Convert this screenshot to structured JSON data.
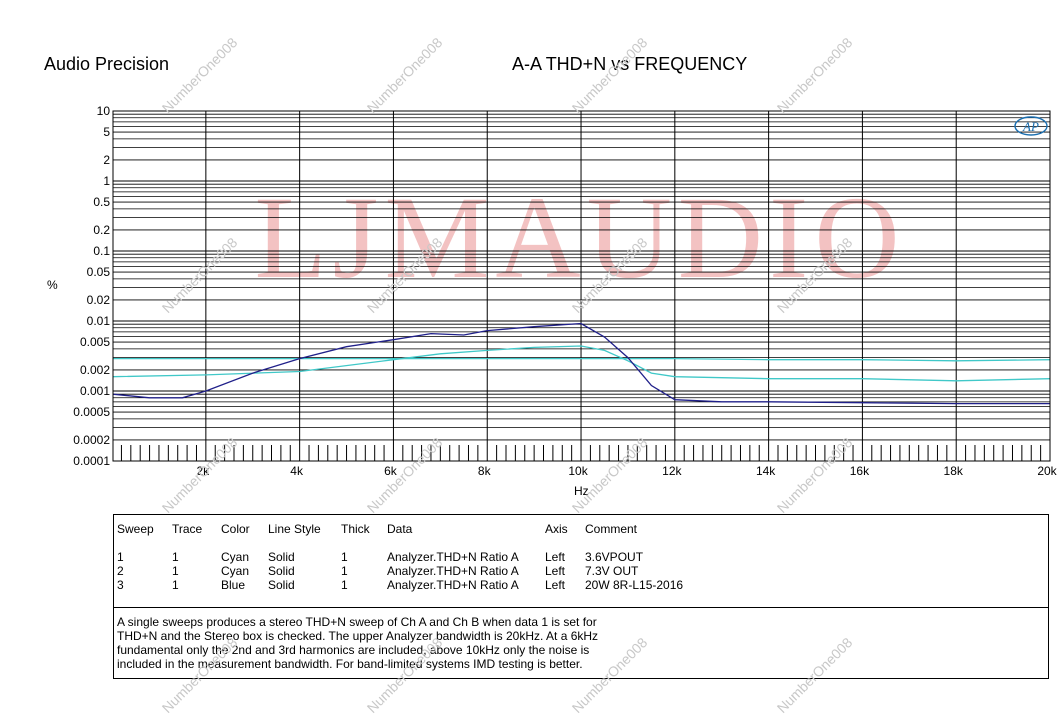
{
  "header": {
    "brand": "Audio Precision",
    "title": "A-A THD+N vs FREQUENCY"
  },
  "chart_data": {
    "type": "line",
    "xlabel": "Hz",
    "ylabel": "%",
    "xlim": [
      20,
      20000
    ],
    "ylim": [
      0.0001,
      10
    ],
    "y_scale": "log",
    "grid": true,
    "x_ticks": [
      {
        "v": 2000,
        "label": "2k"
      },
      {
        "v": 4000,
        "label": "4k"
      },
      {
        "v": 6000,
        "label": "6k"
      },
      {
        "v": 8000,
        "label": "8k"
      },
      {
        "v": 10000,
        "label": "10k"
      },
      {
        "v": 12000,
        "label": "12k"
      },
      {
        "v": 14000,
        "label": "14k"
      },
      {
        "v": 16000,
        "label": "16k"
      },
      {
        "v": 18000,
        "label": "18k"
      },
      {
        "v": 20000,
        "label": "20k"
      }
    ],
    "y_ticks": [
      {
        "v": 10,
        "label": "10"
      },
      {
        "v": 5,
        "label": "5"
      },
      {
        "v": 2,
        "label": "2"
      },
      {
        "v": 1,
        "label": "1"
      },
      {
        "v": 0.5,
        "label": "0.5"
      },
      {
        "v": 0.2,
        "label": "0.2"
      },
      {
        "v": 0.1,
        "label": "0.1"
      },
      {
        "v": 0.05,
        "label": "0.05"
      },
      {
        "v": 0.02,
        "label": "0.02"
      },
      {
        "v": 0.01,
        "label": "0.01"
      },
      {
        "v": 0.005,
        "label": "0.005"
      },
      {
        "v": 0.002,
        "label": "0.002"
      },
      {
        "v": 0.001,
        "label": "0.001"
      },
      {
        "v": 0.0005,
        "label": "0.0005"
      },
      {
        "v": 0.0002,
        "label": "0.0002"
      },
      {
        "v": 0.0001,
        "label": "0.0001"
      }
    ],
    "series": [
      {
        "name": "3.6VPOUT",
        "color": "#40c8c8",
        "x": [
          20,
          2000,
          4000,
          6000,
          8000,
          10000,
          12000,
          14000,
          16000,
          18000,
          20000
        ],
        "y": [
          0.0029,
          0.0029,
          0.0029,
          0.0029,
          0.0029,
          0.0029,
          0.0029,
          0.0028,
          0.0028,
          0.0027,
          0.0028
        ]
      },
      {
        "name": "7.3V OUT",
        "color": "#40c8c8",
        "x": [
          20,
          2000,
          4000,
          6000,
          7000,
          8000,
          9000,
          10000,
          10500,
          11000,
          11500,
          12000,
          14000,
          16000,
          18000,
          20000
        ],
        "y": [
          0.0016,
          0.0017,
          0.0019,
          0.0028,
          0.0034,
          0.0038,
          0.0042,
          0.0044,
          0.0038,
          0.0027,
          0.0018,
          0.0016,
          0.0015,
          0.0015,
          0.0014,
          0.0015
        ]
      },
      {
        "name": "20W 8R-L15-2016",
        "color": "#20208a",
        "x": [
          20,
          800,
          1500,
          2000,
          3000,
          4000,
          5000,
          6000,
          6800,
          7500,
          8000,
          9000,
          10000,
          10500,
          11000,
          11500,
          12000,
          13000,
          14000,
          16000,
          18000,
          20000
        ],
        "y": [
          0.0009,
          0.0008,
          0.0008,
          0.001,
          0.0018,
          0.0029,
          0.0043,
          0.0054,
          0.0066,
          0.0063,
          0.0073,
          0.0083,
          0.0092,
          0.0059,
          0.003,
          0.0012,
          0.00075,
          0.0007,
          0.0007,
          0.00068,
          0.00066,
          0.00066
        ]
      }
    ]
  },
  "legend": {
    "headers": {
      "sweep": "Sweep",
      "trace": "Trace",
      "color": "Color",
      "line_style": "Line Style",
      "thick": "Thick",
      "data": "Data",
      "axis": "Axis",
      "comment": "Comment"
    },
    "rows": [
      {
        "sweep": "1",
        "trace": "1",
        "color": "Cyan",
        "line_style": "Solid",
        "thick": "1",
        "data": "Analyzer.THD+N Ratio A",
        "axis": "Left",
        "comment": "3.6VPOUT"
      },
      {
        "sweep": "2",
        "trace": "1",
        "color": "Cyan",
        "line_style": "Solid",
        "thick": "1",
        "data": "Analyzer.THD+N Ratio A",
        "axis": "Left",
        "comment": "7.3V OUT"
      },
      {
        "sweep": "3",
        "trace": "1",
        "color": "Blue",
        "line_style": "Solid",
        "thick": "1",
        "data": "Analyzer.THD+N Ratio A",
        "axis": "Left",
        "comment": "20W 8R-L15-2016"
      }
    ],
    "note_lines": [
      "A single sweeps produces a stereo THD+N sweep of Ch A and Ch B when data 1 is set for",
      "THD+N and the Stereo box is checked.  The upper Analyzer bandwidth is 20kHz.  At a 6kHz",
      "fundamental only the 2nd and 3rd harmonics are included, above 10kHz only the noise is",
      "included in the measurement bandwidth.  For band-limited systems IMD testing is better."
    ]
  },
  "watermark": {
    "big": "LJMAUDIO",
    "small": "NumberOne008",
    "logo": "AP"
  },
  "colors": {
    "watermark_big": "#f2b8b8",
    "cyan": "#40c8c8",
    "blue": "#20208a"
  }
}
